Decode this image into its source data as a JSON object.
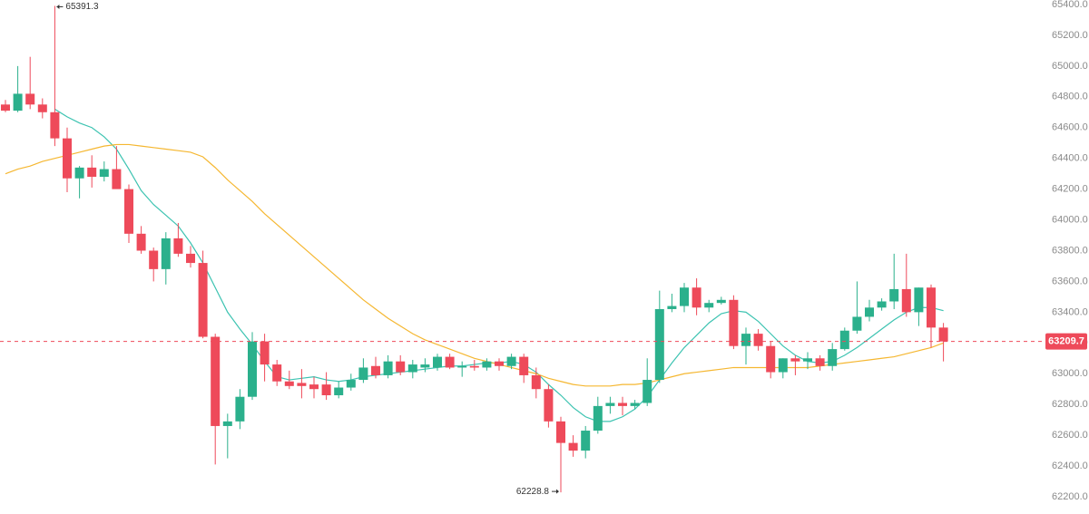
{
  "chart_data": {
    "type": "candlestick",
    "open": [
      64750,
      64710,
      64820,
      64750,
      64700,
      64530,
      64270,
      64340,
      64280,
      64330,
      64200,
      63910,
      63800,
      63680,
      63880,
      63780,
      63720,
      63240,
      62660,
      62690,
      62850,
      63210,
      63060,
      62950,
      62940,
      62930,
      62930,
      62860,
      62910,
      62960,
      63050,
      62990,
      63080,
      63010,
      63040,
      63040,
      63110,
      63040,
      63050,
      63040,
      63080,
      63050,
      63110,
      62990,
      62900,
      62690,
      62550,
      62500,
      62630,
      62790,
      62810,
      62790,
      62810,
      62960,
      63420,
      63440,
      63560,
      63430,
      63460,
      63480,
      63180,
      63260,
      63180,
      63010,
      63100,
      63080,
      63100,
      63050,
      63160,
      63280,
      63370,
      63430,
      63470,
      63550,
      63400,
      63560,
      63300
    ],
    "high": [
      64780,
      65000,
      65060,
      64790,
      65391.3,
      64600,
      64350,
      64420,
      64380,
      64480,
      64230,
      63960,
      63820,
      63920,
      63980,
      63830,
      63800,
      63260,
      62740,
      62900,
      63270,
      63260,
      63090,
      63020,
      63030,
      62980,
      63010,
      62950,
      63000,
      63100,
      63110,
      63120,
      63120,
      63090,
      63100,
      63130,
      63130,
      63080,
      63090,
      63100,
      63100,
      63130,
      63130,
      63040,
      62930,
      62720,
      62600,
      62660,
      62850,
      62850,
      62850,
      62830,
      63100,
      63540,
      63520,
      63590,
      63620,
      63480,
      63500,
      63510,
      63300,
      63290,
      63210,
      63100,
      63120,
      63140,
      63120,
      63200,
      63300,
      63600,
      63480,
      63490,
      63780,
      63780,
      63560,
      63580,
      63330
    ],
    "low": [
      64700,
      64700,
      64720,
      64660,
      64480,
      64180,
      64140,
      64210,
      64250,
      64220,
      63850,
      63780,
      63600,
      63580,
      63760,
      63690,
      63230,
      62410,
      62450,
      62640,
      62830,
      62950,
      62920,
      62900,
      62840,
      62840,
      62830,
      62840,
      62890,
      62940,
      62970,
      62970,
      62990,
      62970,
      63010,
      63020,
      63030,
      62980,
      63020,
      63020,
      63020,
      63030,
      62940,
      62840,
      62650,
      62228.8,
      62460,
      62450,
      62610,
      62740,
      62730,
      62770,
      62790,
      62940,
      63400,
      63400,
      63380,
      63400,
      63450,
      63160,
      63060,
      63150,
      62970,
      62970,
      62990,
      63030,
      63020,
      63020,
      63150,
      63260,
      63340,
      63410,
      63420,
      63370,
      63310,
      63170,
      63080
    ],
    "close": [
      64710,
      64820,
      64750,
      64700,
      64530,
      64270,
      64340,
      64280,
      64330,
      64200,
      63910,
      63800,
      63680,
      63880,
      63780,
      63720,
      63240,
      62660,
      62690,
      62850,
      63210,
      63060,
      62950,
      62920,
      62920,
      62900,
      62860,
      62910,
      62960,
      63040,
      62990,
      63080,
      63010,
      63060,
      63060,
      63110,
      63040,
      63050,
      63040,
      63080,
      63050,
      63110,
      62990,
      62900,
      62690,
      62550,
      62500,
      62630,
      62790,
      62810,
      62790,
      62810,
      62960,
      63420,
      63440,
      63560,
      63430,
      63460,
      63480,
      63180,
      63260,
      63180,
      63010,
      63100,
      63080,
      63100,
      63050,
      63160,
      63280,
      63370,
      63430,
      63470,
      63550,
      63400,
      63560,
      63300,
      63209.7
    ],
    "up_color": "#2bb08c",
    "down_color": "#ee4a5a",
    "series": [
      {
        "color": "#3cc3b1",
        "values": [
          null,
          null,
          null,
          null,
          64720,
          64670,
          64630,
          64600,
          64540,
          64460,
          64330,
          64190,
          64100,
          64030,
          63960,
          63850,
          63720,
          63560,
          63400,
          63290,
          63190,
          63080,
          62980,
          62960,
          62970,
          62980,
          62960,
          62950,
          62960,
          62980,
          62990,
          63000,
          63010,
          63020,
          63030,
          63040,
          63050,
          63050,
          63060,
          63070,
          63070,
          63080,
          63060,
          63010,
          62930,
          62860,
          62780,
          62720,
          62690,
          62690,
          62720,
          62770,
          62850,
          62960,
          63070,
          63170,
          63250,
          63330,
          63390,
          63410,
          63400,
          63340,
          63260,
          63180,
          63120,
          63080,
          63070,
          63080,
          63120,
          63170,
          63230,
          63290,
          63350,
          63400,
          63430,
          63430,
          63410
        ]
      },
      {
        "color": "#f5b731",
        "values": [
          64300,
          64330,
          64350,
          64380,
          64400,
          64420,
          64440,
          64460,
          64480,
          64490,
          64490,
          64480,
          64470,
          64460,
          64450,
          64440,
          64410,
          64340,
          64260,
          64190,
          64120,
          64040,
          63970,
          63900,
          63830,
          63760,
          63690,
          63620,
          63550,
          63480,
          63420,
          63360,
          63310,
          63260,
          63220,
          63190,
          63160,
          63130,
          63100,
          63080,
          63060,
          63040,
          63020,
          63000,
          62970,
          62950,
          62930,
          62920,
          62920,
          62920,
          62930,
          62930,
          62940,
          62960,
          62980,
          63000,
          63010,
          63020,
          63030,
          63040,
          63040,
          63040,
          63040,
          63040,
          63040,
          63040,
          63050,
          63060,
          63070,
          63080,
          63090,
          63100,
          63110,
          63130,
          63150,
          63170,
          63200
        ]
      }
    ],
    "ylim": [
      62200,
      65400
    ],
    "yticks": [
      {
        "value": 62200,
        "label": "62200.0"
      },
      {
        "value": 62400,
        "label": "62400.0"
      },
      {
        "value": 62600,
        "label": "62600.0"
      },
      {
        "value": 62800,
        "label": "62800.0"
      },
      {
        "value": 63000,
        "label": "63000.0"
      },
      {
        "value": 63200,
        "label": "63200.0"
      },
      {
        "value": 63400,
        "label": "63400.0"
      },
      {
        "value": 63600,
        "label": "63600.0"
      },
      {
        "value": 63800,
        "label": "63800.0"
      },
      {
        "value": 64000,
        "label": "64000.0"
      },
      {
        "value": 64200,
        "label": "64200.0"
      },
      {
        "value": 64400,
        "label": "64400.0"
      },
      {
        "value": 64600,
        "label": "64600.0"
      },
      {
        "value": 64800,
        "label": "64800.0"
      },
      {
        "value": 65000,
        "label": "65000.0"
      },
      {
        "value": 65200,
        "label": "65200.0"
      },
      {
        "value": 65400,
        "label": "65400.0"
      }
    ]
  }
}
